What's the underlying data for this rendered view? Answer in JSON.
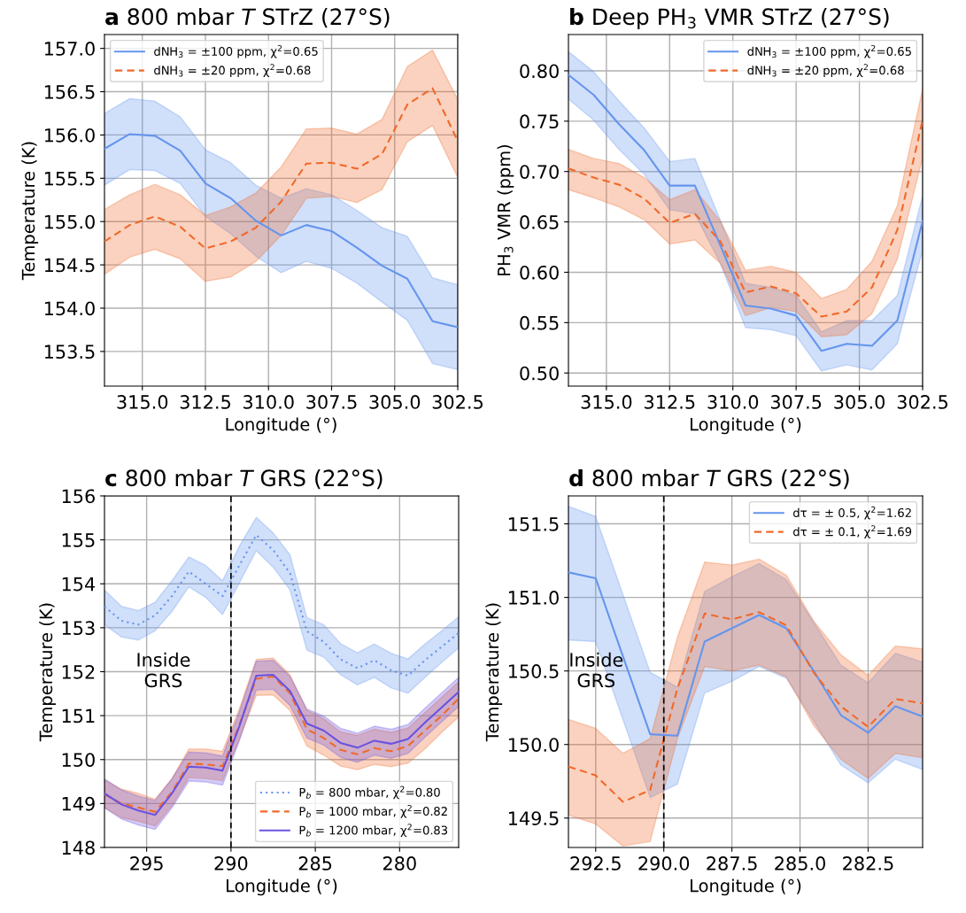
{
  "chart_data": [
    {
      "type": "line",
      "title": "a 800 mbar T STrZ (27°S)",
      "xlabel": "Longitude (°)",
      "ylabel": "Temperature (K)",
      "x": [
        316.5,
        315.5,
        314.5,
        313.5,
        312.5,
        311.5,
        310.5,
        309.5,
        308.5,
        307.5,
        306.5,
        305.5,
        304.5,
        303.5,
        302.5
      ],
      "xlim": [
        316.5,
        302.5
      ],
      "xticks": [
        {
          "value": 315,
          "label": "315.0"
        },
        312.5,
        {
          "value": 310,
          "label": "310.0"
        },
        307.5,
        {
          "value": 305,
          "label": "305.0"
        },
        302.5
      ],
      "ylim": [
        153.1,
        157.16
      ],
      "yticks": [
        153.5,
        {
          "value": 154,
          "label": "154.0"
        },
        154.5,
        {
          "value": 155,
          "label": "155.0"
        },
        155.5,
        {
          "value": 156,
          "label": "156.0"
        },
        156.5,
        {
          "value": 157,
          "label": "157.0"
        }
      ],
      "grid": true,
      "legend": "top left",
      "marker": "none",
      "series": [
        {
          "name": "dNH$_{3}$ = ±100 ppm, χ$^{2}$=0.65",
          "color": "#6495ed",
          "line_style": "solid",
          "values": [
            155.84,
            156.01,
            155.99,
            155.82,
            155.44,
            155.27,
            155.01,
            154.84,
            154.96,
            154.89,
            154.7,
            154.49,
            154.34,
            153.85,
            153.78
          ],
          "upper": [
            156.25,
            156.42,
            156.39,
            156.21,
            155.83,
            155.68,
            155.42,
            155.27,
            155.38,
            155.31,
            155.13,
            154.93,
            154.83,
            154.35,
            154.27
          ],
          "lower": [
            155.42,
            155.6,
            155.59,
            155.44,
            155.06,
            154.86,
            154.6,
            154.41,
            154.54,
            154.46,
            154.29,
            154.07,
            153.86,
            153.36,
            153.29
          ]
        },
        {
          "name": "dNH$_{3}$ = ±20 ppm, χ$^{2}$=0.68",
          "color": "#f0692a",
          "line_style": "dashed",
          "values": [
            154.77,
            154.96,
            155.06,
            154.94,
            154.69,
            154.77,
            154.93,
            155.23,
            155.67,
            155.68,
            155.61,
            155.78,
            156.35,
            156.54,
            155.93
          ],
          "upper": [
            155.14,
            155.31,
            155.43,
            155.31,
            155.07,
            155.17,
            155.33,
            155.63,
            156.07,
            156.08,
            156.01,
            156.18,
            156.79,
            156.98,
            156.41
          ],
          "lower": [
            154.39,
            154.59,
            154.68,
            154.57,
            154.31,
            154.36,
            154.54,
            154.84,
            155.27,
            155.29,
            155.22,
            155.37,
            155.92,
            156.11,
            155.51
          ]
        }
      ]
    },
    {
      "type": "line",
      "title": "b Deep PH$_{3}$ VMR STrZ (27°S)",
      "xlabel": "Longitude (°)",
      "ylabel": "PH$_{3}$ VMR (ppm)",
      "x": [
        316.5,
        315.5,
        314.5,
        313.5,
        312.5,
        311.5,
        310.5,
        309.5,
        308.5,
        307.5,
        306.5,
        305.5,
        304.5,
        303.5,
        302.5
      ],
      "xlim": [
        316.5,
        302.5
      ],
      "xticks": [
        {
          "value": 315,
          "label": "315.0"
        },
        312.5,
        {
          "value": 310,
          "label": "310.0"
        },
        307.5,
        {
          "value": 305,
          "label": "305.0"
        },
        302.5
      ],
      "ylim": [
        0.487,
        0.836
      ],
      "yticks": [
        {
          "value": 0.5,
          "label": "0.50"
        },
        {
          "value": 0.55,
          "label": "0.55"
        },
        {
          "value": 0.6,
          "label": "0.60"
        },
        {
          "value": 0.65,
          "label": "0.65"
        },
        {
          "value": 0.7,
          "label": "0.70"
        },
        {
          "value": 0.75,
          "label": "0.75"
        },
        {
          "value": 0.8,
          "label": "0.80"
        }
      ],
      "grid": true,
      "legend": "top right",
      "marker": "none",
      "series": [
        {
          "name": "dNH$_{3}$ = ±100 ppm, χ$^{2}$=0.65",
          "color": "#6495ed",
          "line_style": "solid",
          "values": [
            0.796,
            0.776,
            0.747,
            0.721,
            0.686,
            0.686,
            0.627,
            0.567,
            0.564,
            0.557,
            0.522,
            0.529,
            0.527,
            0.552,
            0.651
          ],
          "upper": [
            0.819,
            0.799,
            0.77,
            0.743,
            0.71,
            0.713,
            0.652,
            0.589,
            0.585,
            0.577,
            0.541,
            0.552,
            0.552,
            0.577,
            0.676
          ],
          "lower": [
            0.772,
            0.751,
            0.722,
            0.697,
            0.662,
            0.658,
            0.609,
            0.545,
            0.543,
            0.537,
            0.502,
            0.508,
            0.503,
            0.529,
            0.622
          ]
        },
        {
          "name": "dNH$_{3}$ = ±20 ppm, χ$^{2}$=0.68",
          "color": "#f0692a",
          "line_style": "dashed",
          "values": [
            0.703,
            0.694,
            0.687,
            0.673,
            0.649,
            0.658,
            0.631,
            0.58,
            0.586,
            0.579,
            0.556,
            0.561,
            0.585,
            0.642,
            0.751
          ],
          "upper": [
            0.722,
            0.713,
            0.708,
            0.694,
            0.672,
            0.682,
            0.651,
            0.602,
            0.606,
            0.6,
            0.574,
            0.583,
            0.611,
            0.666,
            0.782
          ],
          "lower": [
            0.682,
            0.674,
            0.665,
            0.652,
            0.628,
            0.632,
            0.609,
            0.557,
            0.565,
            0.561,
            0.536,
            0.538,
            0.559,
            0.613,
            0.714
          ]
        }
      ]
    },
    {
      "type": "line",
      "title": "c 800 mbar T GRS (22°S)",
      "xlabel": "Longitude (°)",
      "ylabel": "Temperature (K)",
      "x": [
        297.5,
        296.5,
        295.5,
        294.5,
        293.5,
        292.5,
        291.5,
        290.5,
        289.5,
        288.5,
        287.5,
        286.5,
        285.5,
        284.5,
        283.5,
        282.5,
        281.5,
        280.5,
        279.5,
        278.5,
        277.5,
        276.5
      ],
      "xlim": [
        297.5,
        276.5
      ],
      "xticks": [
        295,
        290,
        285,
        280
      ],
      "ylim": [
        148,
        156
      ],
      "yticks": [
        148,
        149,
        150,
        151,
        152,
        153,
        154,
        155,
        156
      ],
      "grid": true,
      "legend": "bottom right",
      "marker": "none",
      "ref_lines": [
        {
          "axis": "x",
          "value": 290,
          "label": "Inside\nGRS",
          "color": "#000000",
          "line_style": "dashed"
        }
      ],
      "series": [
        {
          "name": "P$_{b}$ = 800 mbar, χ$^{2}$=0.80",
          "color": "#6495ed",
          "line_style": "dotted",
          "values": [
            153.48,
            153.16,
            153.07,
            153.28,
            153.72,
            154.28,
            154.0,
            153.72,
            154.42,
            155.11,
            154.77,
            154.24,
            152.92,
            152.68,
            152.28,
            152.08,
            152.26,
            152.03,
            151.91,
            152.26,
            152.57,
            152.88
          ],
          "upper": [
            153.86,
            153.49,
            153.39,
            153.58,
            154.07,
            154.61,
            154.42,
            154.07,
            154.86,
            155.51,
            155.16,
            154.66,
            153.23,
            153.07,
            152.64,
            152.43,
            152.63,
            152.42,
            152.29,
            152.63,
            152.93,
            153.25
          ],
          "lower": [
            153.07,
            152.79,
            152.72,
            152.93,
            153.37,
            153.93,
            153.69,
            153.3,
            154.02,
            154.75,
            154.38,
            153.86,
            152.49,
            152.33,
            151.93,
            151.7,
            151.87,
            151.63,
            151.51,
            151.87,
            152.21,
            152.54
          ]
        },
        {
          "name": "P$_{b}$ = 1000 mbar, χ$^{2}$=0.82",
          "color": "#f0692a",
          "line_style": "dashed",
          "values": [
            149.21,
            149.0,
            148.91,
            148.81,
            149.26,
            149.91,
            149.89,
            149.85,
            150.79,
            151.84,
            151.89,
            151.51,
            150.69,
            150.49,
            150.22,
            150.12,
            150.26,
            150.19,
            150.31,
            150.66,
            151.0,
            151.39
          ],
          "upper": [
            149.54,
            149.33,
            149.23,
            149.1,
            149.57,
            150.24,
            150.24,
            150.19,
            151.16,
            152.28,
            152.31,
            151.93,
            151.12,
            150.93,
            150.63,
            150.55,
            150.69,
            150.62,
            150.72,
            151.07,
            151.42,
            151.77
          ],
          "lower": [
            148.91,
            148.68,
            148.6,
            148.49,
            148.95,
            149.59,
            149.57,
            149.52,
            150.47,
            151.46,
            151.47,
            151.12,
            150.31,
            150.1,
            149.85,
            149.77,
            149.89,
            149.84,
            149.92,
            150.24,
            150.62,
            150.97
          ]
        },
        {
          "name": "P$_{b}$ = 1200 mbar, χ$^{2}$=0.83",
          "color": "#6a52e0",
          "line_style": "solid",
          "values": [
            149.23,
            148.98,
            148.84,
            148.74,
            149.23,
            149.84,
            149.82,
            149.75,
            150.76,
            151.91,
            151.93,
            151.56,
            150.82,
            150.66,
            150.38,
            150.27,
            150.43,
            150.36,
            150.47,
            150.84,
            151.19,
            151.54
          ],
          "upper": [
            149.56,
            149.31,
            149.17,
            149.07,
            149.56,
            150.17,
            150.15,
            150.08,
            151.09,
            152.24,
            152.26,
            151.89,
            151.15,
            150.99,
            150.71,
            150.6,
            150.76,
            150.69,
            150.8,
            151.17,
            151.52,
            151.87
          ],
          "lower": [
            148.9,
            148.65,
            148.51,
            148.41,
            148.9,
            149.51,
            149.49,
            149.42,
            150.43,
            151.58,
            151.6,
            151.23,
            150.49,
            150.33,
            150.05,
            149.94,
            150.1,
            150.03,
            150.14,
            150.51,
            150.86,
            151.21
          ]
        }
      ]
    },
    {
      "type": "line",
      "title": "d 800 mbar T GRS (22°S)",
      "xlabel": "Longitude (°)",
      "ylabel": "Temperature (K)",
      "x": [
        293.5,
        292.5,
        291.5,
        290.5,
        289.5,
        288.5,
        287.5,
        286.5,
        285.5,
        284.5,
        283.5,
        282.5,
        281.5,
        280.5
      ],
      "xlim": [
        293.5,
        280.5
      ],
      "xticks": [
        292.5,
        {
          "value": 290,
          "label": "290.0"
        },
        287.5,
        {
          "value": 285,
          "label": "285.0"
        },
        282.5
      ],
      "ylim": [
        149.3,
        151.69
      ],
      "yticks": [
        149.5,
        {
          "value": 150,
          "label": "150.0"
        },
        150.5,
        {
          "value": 151,
          "label": "151.0"
        },
        151.5
      ],
      "grid": true,
      "legend": "top right",
      "marker": "none",
      "ref_lines": [
        {
          "axis": "x",
          "value": 290,
          "label": "Inside\nGRS",
          "color": "#000000",
          "line_style": "dashed"
        }
      ],
      "series": [
        {
          "name": "dτ = ± 0.5, χ$^{2}$=1.62",
          "color": "#6495ed",
          "line_style": "solid",
          "values": [
            151.17,
            151.13,
            150.6,
            150.07,
            150.06,
            150.7,
            150.79,
            150.88,
            150.79,
            150.5,
            150.2,
            150.08,
            150.26,
            150.19
          ],
          "upper": [
            151.62,
            151.55,
            151.02,
            150.49,
            150.39,
            151.04,
            151.14,
            151.23,
            151.12,
            150.83,
            150.54,
            150.42,
            150.62,
            150.56
          ],
          "lower": [
            150.71,
            150.7,
            150.17,
            149.64,
            149.73,
            150.35,
            150.43,
            150.53,
            150.45,
            150.16,
            149.86,
            149.74,
            149.9,
            149.83
          ]
        },
        {
          "name": "dτ = ± 0.1, χ$^{2}$=1.69",
          "color": "#f0692a",
          "line_style": "dashed",
          "values": [
            149.85,
            149.79,
            149.61,
            149.69,
            150.38,
            150.89,
            150.85,
            150.9,
            150.81,
            150.49,
            150.26,
            150.12,
            150.31,
            150.28
          ],
          "upper": [
            150.17,
            150.11,
            149.94,
            150.04,
            150.73,
            151.24,
            151.22,
            151.26,
            151.15,
            150.84,
            150.61,
            150.47,
            150.67,
            150.65
          ],
          "lower": [
            149.52,
            149.46,
            149.31,
            149.34,
            150.04,
            150.53,
            150.5,
            150.54,
            150.46,
            150.13,
            149.9,
            149.77,
            149.94,
            149.91
          ]
        }
      ]
    }
  ]
}
